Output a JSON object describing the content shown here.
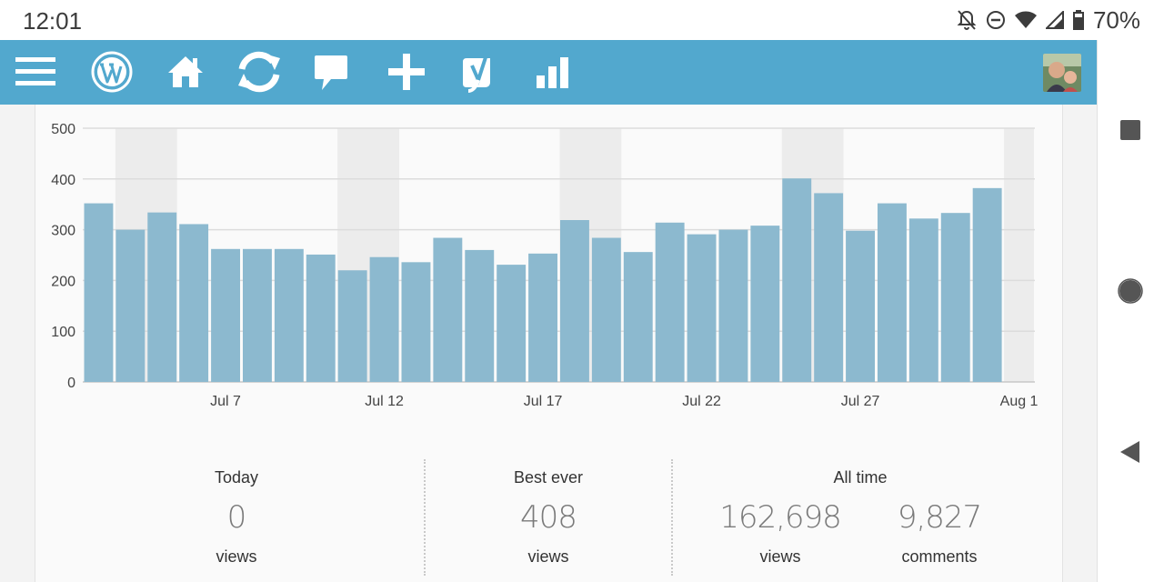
{
  "status_bar": {
    "time": "12:01",
    "battery_percent": "70%"
  },
  "toolbar": {
    "icons": [
      "menu-icon",
      "wordpress-icon",
      "home-icon",
      "refresh-icon",
      "comment-icon",
      "add-icon",
      "yoast-icon",
      "stats-icon"
    ],
    "accent_color": "#52a8ce"
  },
  "chart_data": {
    "type": "bar",
    "title": "",
    "xlabel": "",
    "ylabel": "",
    "ylim": [
      0,
      500
    ],
    "yticks": [
      0,
      100,
      200,
      300,
      400,
      500
    ],
    "ytick_labels": [
      "0",
      "100",
      "200",
      "300",
      "400",
      "500"
    ],
    "categories": [
      "Jul 3",
      "Jul 4",
      "Jul 5",
      "Jul 6",
      "Jul 7",
      "Jul 8",
      "Jul 9",
      "Jul 10",
      "Jul 11",
      "Jul 12",
      "Jul 13",
      "Jul 14",
      "Jul 15",
      "Jul 16",
      "Jul 17",
      "Jul 18",
      "Jul 19",
      "Jul 20",
      "Jul 21",
      "Jul 22",
      "Jul 23",
      "Jul 24",
      "Jul 25",
      "Jul 26",
      "Jul 27",
      "Jul 28",
      "Jul 29",
      "Jul 30",
      "Jul 31",
      "Aug 1"
    ],
    "values": [
      352,
      300,
      334,
      311,
      262,
      262,
      262,
      251,
      220,
      246,
      236,
      284,
      260,
      231,
      253,
      319,
      284,
      256,
      314,
      291,
      300,
      308,
      401,
      372,
      298,
      352,
      322,
      333,
      382,
      0
    ],
    "xtick_labels": [
      {
        "index": 4,
        "label": "Jul 7"
      },
      {
        "index": 9,
        "label": "Jul 12"
      },
      {
        "index": 14,
        "label": "Jul 17"
      },
      {
        "index": 19,
        "label": "Jul 22"
      },
      {
        "index": 24,
        "label": "Jul 27"
      },
      {
        "index": 29,
        "label": "Aug 1"
      }
    ],
    "weekend_shading_indices": [
      [
        1,
        2
      ],
      [
        8,
        9
      ],
      [
        15,
        16
      ],
      [
        22,
        23
      ],
      [
        29
      ]
    ],
    "bar_color": "#8cb9cf",
    "shade_color": "#ececec",
    "grid": true
  },
  "summary": {
    "today": {
      "label": "Today",
      "value": "0",
      "unit": "views"
    },
    "best_ever": {
      "label": "Best ever",
      "value": "408",
      "unit": "views"
    },
    "all_time": {
      "label": "All time",
      "views_value": "162,698",
      "views_unit": "views",
      "comments_value": "9,827",
      "comments_unit": "comments"
    }
  }
}
